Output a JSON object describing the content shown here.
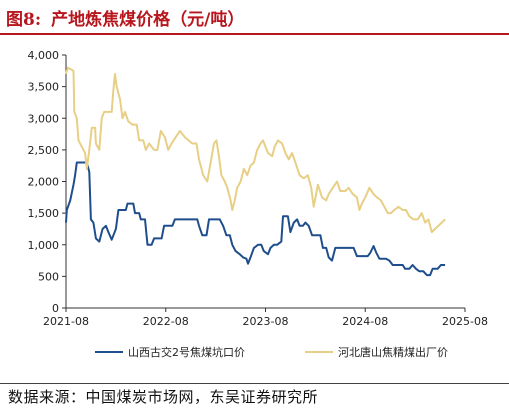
{
  "header": {
    "label": "图8:",
    "title": "产地炼焦煤价格（元/吨）"
  },
  "source": "数据来源：中国煤炭市场网，东吴证券研究所",
  "colors": {
    "accent": "#b8161d",
    "series1": "#1f4e8c",
    "series2": "#e8cf86"
  },
  "chart_data": {
    "type": "line",
    "title": "产地炼焦煤价格（元/吨）",
    "xlabel": "",
    "ylabel": "",
    "ylim": [
      0,
      4000
    ],
    "yticks": [
      0,
      500,
      1000,
      1500,
      2000,
      2500,
      3000,
      3500,
      4000
    ],
    "ytick_labels": [
      "0",
      "500",
      "1,000",
      "1,500",
      "2,000",
      "2,500",
      "3,000",
      "3,500",
      "4,000"
    ],
    "xlim": [
      0,
      48
    ],
    "xticks": [
      0,
      12,
      24,
      36,
      48
    ],
    "xtick_labels": [
      "2021-08",
      "2022-08",
      "2023-08",
      "2024-08",
      "2025-08"
    ],
    "x_unit": "months since 2021-08",
    "grid": false,
    "legend": "bottom",
    "series": [
      {
        "name": "山西古交2号焦煤坑口价",
        "color": "#1f4e8c",
        "points": [
          [
            0.0,
            1350
          ],
          [
            0.1,
            1550
          ],
          [
            0.5,
            1700
          ],
          [
            0.9,
            1950
          ],
          [
            1.1,
            2100
          ],
          [
            1.3,
            2300
          ],
          [
            2.5,
            2300
          ],
          [
            2.8,
            2150
          ],
          [
            3.0,
            1400
          ],
          [
            3.3,
            1350
          ],
          [
            3.6,
            1100
          ],
          [
            4.0,
            1050
          ],
          [
            4.4,
            1250
          ],
          [
            4.8,
            1300
          ],
          [
            5.1,
            1200
          ],
          [
            5.5,
            1080
          ],
          [
            6.0,
            1250
          ],
          [
            6.3,
            1550
          ],
          [
            7.2,
            1550
          ],
          [
            7.4,
            1650
          ],
          [
            8.1,
            1650
          ],
          [
            8.3,
            1500
          ],
          [
            8.8,
            1500
          ],
          [
            9.0,
            1400
          ],
          [
            9.5,
            1400
          ],
          [
            9.8,
            1000
          ],
          [
            10.3,
            1000
          ],
          [
            10.6,
            1100
          ],
          [
            11.5,
            1100
          ],
          [
            11.8,
            1300
          ],
          [
            12.8,
            1300
          ],
          [
            13.1,
            1400
          ],
          [
            15.8,
            1400
          ],
          [
            16.0,
            1300
          ],
          [
            16.4,
            1150
          ],
          [
            16.9,
            1150
          ],
          [
            17.2,
            1400
          ],
          [
            18.5,
            1400
          ],
          [
            18.9,
            1300
          ],
          [
            19.3,
            1150
          ],
          [
            19.7,
            1150
          ],
          [
            20.0,
            1000
          ],
          [
            20.4,
            900
          ],
          [
            20.9,
            850
          ],
          [
            21.3,
            800
          ],
          [
            21.7,
            780
          ],
          [
            21.9,
            700
          ],
          [
            22.2,
            800
          ],
          [
            22.6,
            950
          ],
          [
            23.1,
            1000
          ],
          [
            23.5,
            1000
          ],
          [
            23.8,
            900
          ],
          [
            24.3,
            850
          ],
          [
            24.6,
            950
          ],
          [
            25.0,
            1000
          ],
          [
            25.4,
            1000
          ],
          [
            25.9,
            1050
          ],
          [
            26.1,
            1450
          ],
          [
            26.7,
            1450
          ],
          [
            27.0,
            1200
          ],
          [
            27.4,
            1350
          ],
          [
            27.8,
            1400
          ],
          [
            28.1,
            1300
          ],
          [
            28.5,
            1300
          ],
          [
            28.8,
            1350
          ],
          [
            29.2,
            1300
          ],
          [
            29.6,
            1150
          ],
          [
            30.6,
            1150
          ],
          [
            30.9,
            950
          ],
          [
            31.3,
            950
          ],
          [
            31.6,
            800
          ],
          [
            32.0,
            750
          ],
          [
            32.4,
            950
          ],
          [
            34.6,
            950
          ],
          [
            35.0,
            820
          ],
          [
            36.3,
            820
          ],
          [
            36.6,
            870
          ],
          [
            37.0,
            980
          ],
          [
            37.3,
            880
          ],
          [
            37.7,
            780
          ],
          [
            38.5,
            780
          ],
          [
            38.9,
            750
          ],
          [
            39.3,
            680
          ],
          [
            40.5,
            680
          ],
          [
            40.8,
            620
          ],
          [
            41.3,
            620
          ],
          [
            41.7,
            680
          ],
          [
            42.1,
            620
          ],
          [
            42.5,
            580
          ],
          [
            43.0,
            580
          ],
          [
            43.4,
            520
          ],
          [
            43.8,
            520
          ],
          [
            44.1,
            620
          ],
          [
            44.7,
            620
          ],
          [
            45.1,
            680
          ],
          [
            45.6,
            680
          ]
        ]
      },
      {
        "name": "河北唐山焦精煤出厂价",
        "color": "#e8cf86",
        "points": [
          [
            0.0,
            3700
          ],
          [
            0.2,
            3800
          ],
          [
            0.9,
            3750
          ],
          [
            1.0,
            3100
          ],
          [
            1.3,
            3000
          ],
          [
            1.5,
            2650
          ],
          [
            1.9,
            2550
          ],
          [
            2.3,
            2450
          ],
          [
            2.5,
            2200
          ],
          [
            2.8,
            2500
          ],
          [
            3.1,
            2850
          ],
          [
            3.5,
            2850
          ],
          [
            3.6,
            2600
          ],
          [
            4.0,
            2500
          ],
          [
            4.3,
            3000
          ],
          [
            4.6,
            3100
          ],
          [
            5.5,
            3100
          ],
          [
            5.7,
            3450
          ],
          [
            5.9,
            3700
          ],
          [
            6.1,
            3500
          ],
          [
            6.5,
            3300
          ],
          [
            6.8,
            3000
          ],
          [
            7.1,
            3100
          ],
          [
            7.5,
            2950
          ],
          [
            8.0,
            2900
          ],
          [
            8.5,
            2900
          ],
          [
            8.8,
            2650
          ],
          [
            9.3,
            2650
          ],
          [
            9.6,
            2500
          ],
          [
            10.0,
            2600
          ],
          [
            10.6,
            2500
          ],
          [
            11.0,
            2500
          ],
          [
            11.4,
            2800
          ],
          [
            11.9,
            2700
          ],
          [
            12.3,
            2500
          ],
          [
            12.7,
            2600
          ],
          [
            13.2,
            2700
          ],
          [
            13.7,
            2800
          ],
          [
            14.3,
            2700
          ],
          [
            15.2,
            2600
          ],
          [
            15.7,
            2600
          ],
          [
            16.0,
            2350
          ],
          [
            16.5,
            2100
          ],
          [
            17.0,
            2000
          ],
          [
            17.4,
            2300
          ],
          [
            17.8,
            2600
          ],
          [
            18.1,
            2650
          ],
          [
            18.4,
            2400
          ],
          [
            18.7,
            2100
          ],
          [
            19.1,
            2000
          ],
          [
            19.4,
            1900
          ],
          [
            19.8,
            1700
          ],
          [
            20.0,
            1550
          ],
          [
            20.3,
            1700
          ],
          [
            20.6,
            1900
          ],
          [
            21.0,
            2000
          ],
          [
            21.4,
            2200
          ],
          [
            21.8,
            2100
          ],
          [
            22.2,
            2250
          ],
          [
            22.6,
            2300
          ],
          [
            23.0,
            2500
          ],
          [
            23.4,
            2600
          ],
          [
            23.7,
            2650
          ],
          [
            24.3,
            2450
          ],
          [
            24.8,
            2400
          ],
          [
            25.1,
            2550
          ],
          [
            25.5,
            2650
          ],
          [
            26.0,
            2600
          ],
          [
            26.4,
            2450
          ],
          [
            26.8,
            2350
          ],
          [
            27.2,
            2450
          ],
          [
            27.6,
            2300
          ],
          [
            28.1,
            2100
          ],
          [
            28.6,
            2050
          ],
          [
            29.1,
            2100
          ],
          [
            29.5,
            1900
          ],
          [
            29.8,
            1600
          ],
          [
            30.3,
            1950
          ],
          [
            30.8,
            1750
          ],
          [
            31.3,
            1700
          ],
          [
            31.6,
            1800
          ],
          [
            32.1,
            1900
          ],
          [
            32.6,
            2000
          ],
          [
            33.0,
            1850
          ],
          [
            33.6,
            1850
          ],
          [
            34.0,
            1900
          ],
          [
            34.5,
            1800
          ],
          [
            35.0,
            1750
          ],
          [
            35.3,
            1550
          ],
          [
            35.6,
            1650
          ],
          [
            36.0,
            1750
          ],
          [
            36.5,
            1900
          ],
          [
            37.0,
            1800
          ],
          [
            37.4,
            1750
          ],
          [
            37.9,
            1700
          ],
          [
            38.3,
            1600
          ],
          [
            38.7,
            1500
          ],
          [
            39.1,
            1500
          ],
          [
            39.5,
            1550
          ],
          [
            40.0,
            1600
          ],
          [
            40.5,
            1550
          ],
          [
            40.9,
            1550
          ],
          [
            41.3,
            1450
          ],
          [
            41.8,
            1400
          ],
          [
            42.3,
            1400
          ],
          [
            42.8,
            1500
          ],
          [
            43.2,
            1350
          ],
          [
            43.6,
            1400
          ],
          [
            44.0,
            1200
          ],
          [
            44.4,
            1250
          ],
          [
            44.8,
            1300
          ],
          [
            45.2,
            1350
          ],
          [
            45.6,
            1400
          ]
        ]
      }
    ]
  }
}
